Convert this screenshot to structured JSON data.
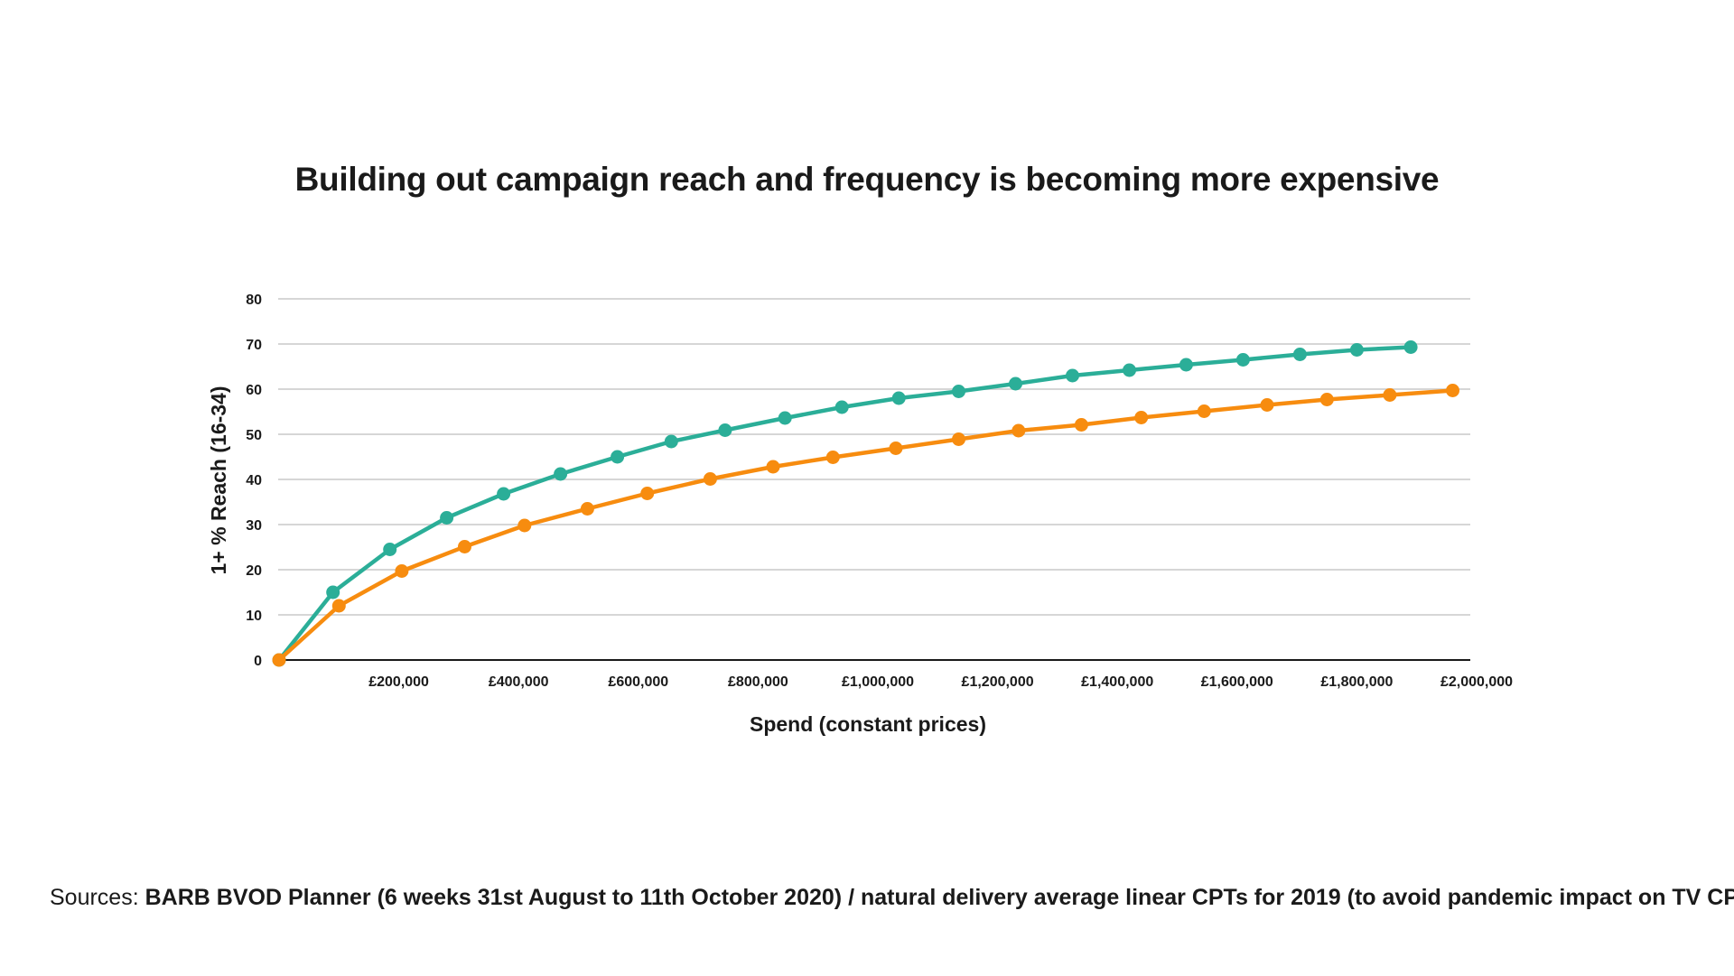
{
  "chart_data": {
    "type": "line",
    "title": "Building out campaign reach and frequency is becoming more expensive",
    "xlabel": "Spend (constant prices)",
    "ylabel": "1+ % Reach (16-34)",
    "xlim": [
      0,
      2000000
    ],
    "ylim": [
      0,
      80
    ],
    "y_ticks": [
      0,
      10,
      20,
      30,
      40,
      50,
      60,
      70,
      80
    ],
    "x_ticks": [
      200000,
      400000,
      600000,
      800000,
      1000000,
      1200000,
      1400000,
      1600000,
      1800000,
      2000000
    ],
    "x_tick_labels": [
      "£200,000",
      "£400,000",
      "£600,000",
      "£800,000",
      "£1,000,000",
      "£1,200,000",
      "£1,400,000",
      "£1,600,000",
      "£1,800,000",
      "£2,000,000"
    ],
    "grid": "horizontal",
    "series": [
      {
        "color": "#2bae98",
        "x": [
          0,
          90000,
          185000,
          280000,
          375000,
          470000,
          565000,
          655000,
          745000,
          845000,
          940000,
          1035000,
          1135000,
          1230000,
          1325000,
          1420000,
          1515000,
          1610000,
          1705000,
          1800000,
          1890000
        ],
        "y": [
          0,
          15,
          24.5,
          31.5,
          36.8,
          41.2,
          45,
          48.4,
          50.9,
          53.6,
          56,
          58,
          59.5,
          61.2,
          63,
          64.2,
          65.4,
          66.5,
          67.7,
          68.7,
          69.3
        ]
      },
      {
        "color": "#f78c0f",
        "x": [
          0,
          100000,
          205000,
          310000,
          410000,
          515000,
          615000,
          720000,
          825000,
          925000,
          1030000,
          1135000,
          1235000,
          1340000,
          1440000,
          1545000,
          1650000,
          1750000,
          1855000,
          1960000
        ],
        "y": [
          0,
          12,
          19.7,
          25.1,
          29.8,
          33.5,
          36.9,
          40.1,
          42.8,
          44.9,
          46.9,
          48.9,
          50.8,
          52.1,
          53.7,
          55.1,
          56.5,
          57.7,
          58.7,
          59.7
        ]
      }
    ]
  },
  "sources": {
    "prefix": "Sources: ",
    "text": "BARB BVOD Planner (6 weeks 31st August to 11th October 2020) / natural delivery average linear CPTs for 2019 (to avoid pandemic impact on TV CPTs)"
  }
}
